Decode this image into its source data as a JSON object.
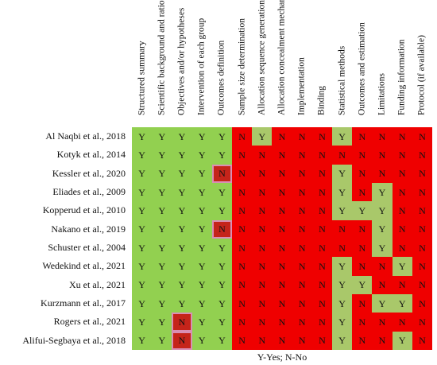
{
  "columns": [
    "Structured summary",
    "Scientific background and rationale",
    "Objectives and/or hypotheses",
    "Intervention of each group",
    "Outcomes definition",
    "Sample size determination",
    "Allocation sequence generation",
    "Allocation concealment mechanism",
    "Implementation",
    "Binding",
    "Statistical methods",
    "Outcomes and estimation",
    "Limitations",
    "Funding information",
    "Protocol (if available)"
  ],
  "rows": [
    {
      "label": "Al Naqbi et al., 2018",
      "values": [
        "Y",
        "Y",
        "Y",
        "Y",
        "Y",
        "N",
        "Y",
        "N",
        "N",
        "N",
        "Y",
        "N",
        "N",
        "N",
        "N"
      ]
    },
    {
      "label": "Kotyk et al., 2014",
      "values": [
        "Y",
        "Y",
        "Y",
        "Y",
        "Y",
        "N",
        "N",
        "N",
        "N",
        "N",
        "N",
        "N",
        "N",
        "N",
        "N"
      ]
    },
    {
      "label": "Kessler et al., 2020",
      "values": [
        "Y",
        "Y",
        "Y",
        "Y",
        "N",
        "N",
        "N",
        "N",
        "N",
        "N",
        "Y",
        "N",
        "N",
        "N",
        "N"
      ]
    },
    {
      "label": "Eliades et al., 2009",
      "values": [
        "Y",
        "Y",
        "Y",
        "Y",
        "Y",
        "N",
        "N",
        "N",
        "N",
        "N",
        "Y",
        "N",
        "Y",
        "N",
        "N"
      ]
    },
    {
      "label": "Kopperud et al., 2010",
      "values": [
        "Y",
        "Y",
        "Y",
        "Y",
        "Y",
        "N",
        "N",
        "N",
        "N",
        "N",
        "Y",
        "Y",
        "Y",
        "N",
        "N"
      ]
    },
    {
      "label": "Nakano et al., 2019",
      "values": [
        "Y",
        "Y",
        "Y",
        "Y",
        "N",
        "N",
        "N",
        "N",
        "N",
        "N",
        "N",
        "N",
        "Y",
        "N",
        "N"
      ]
    },
    {
      "label": "Schuster et al., 2004",
      "values": [
        "Y",
        "Y",
        "Y",
        "Y",
        "Y",
        "N",
        "N",
        "N",
        "N",
        "N",
        "N",
        "N",
        "Y",
        "N",
        "N"
      ]
    },
    {
      "label": "Wedekind et al., 2021",
      "values": [
        "Y",
        "Y",
        "Y",
        "Y",
        "Y",
        "N",
        "N",
        "N",
        "N",
        "N",
        "Y",
        "N",
        "N",
        "Y",
        "N"
      ]
    },
    {
      "label": "Xu et al., 2021",
      "values": [
        "Y",
        "Y",
        "Y",
        "Y",
        "Y",
        "N",
        "N",
        "N",
        "N",
        "N",
        "Y",
        "Y",
        "N",
        "N",
        "N"
      ]
    },
    {
      "label": "Kurzmann et al., 2017",
      "values": [
        "Y",
        "Y",
        "Y",
        "Y",
        "Y",
        "N",
        "N",
        "N",
        "N",
        "N",
        "Y",
        "N",
        "Y",
        "Y",
        "N"
      ]
    },
    {
      "label": "Rogers et al., 2021",
      "values": [
        "Y",
        "Y",
        "N",
        "Y",
        "Y",
        "N",
        "N",
        "N",
        "N",
        "N",
        "Y",
        "N",
        "N",
        "N",
        "N"
      ]
    },
    {
      "label": "Alifui-Segbaya et al., 2018",
      "values": [
        "Y",
        "Y",
        "N",
        "Y",
        "Y",
        "N",
        "N",
        "N",
        "N",
        "N",
        "Y",
        "N",
        "N",
        "Y",
        "N"
      ]
    }
  ],
  "colors": {
    "yes": "#92d050",
    "no": "#ef0000"
  },
  "legend": "Y-Yes; N-No"
}
